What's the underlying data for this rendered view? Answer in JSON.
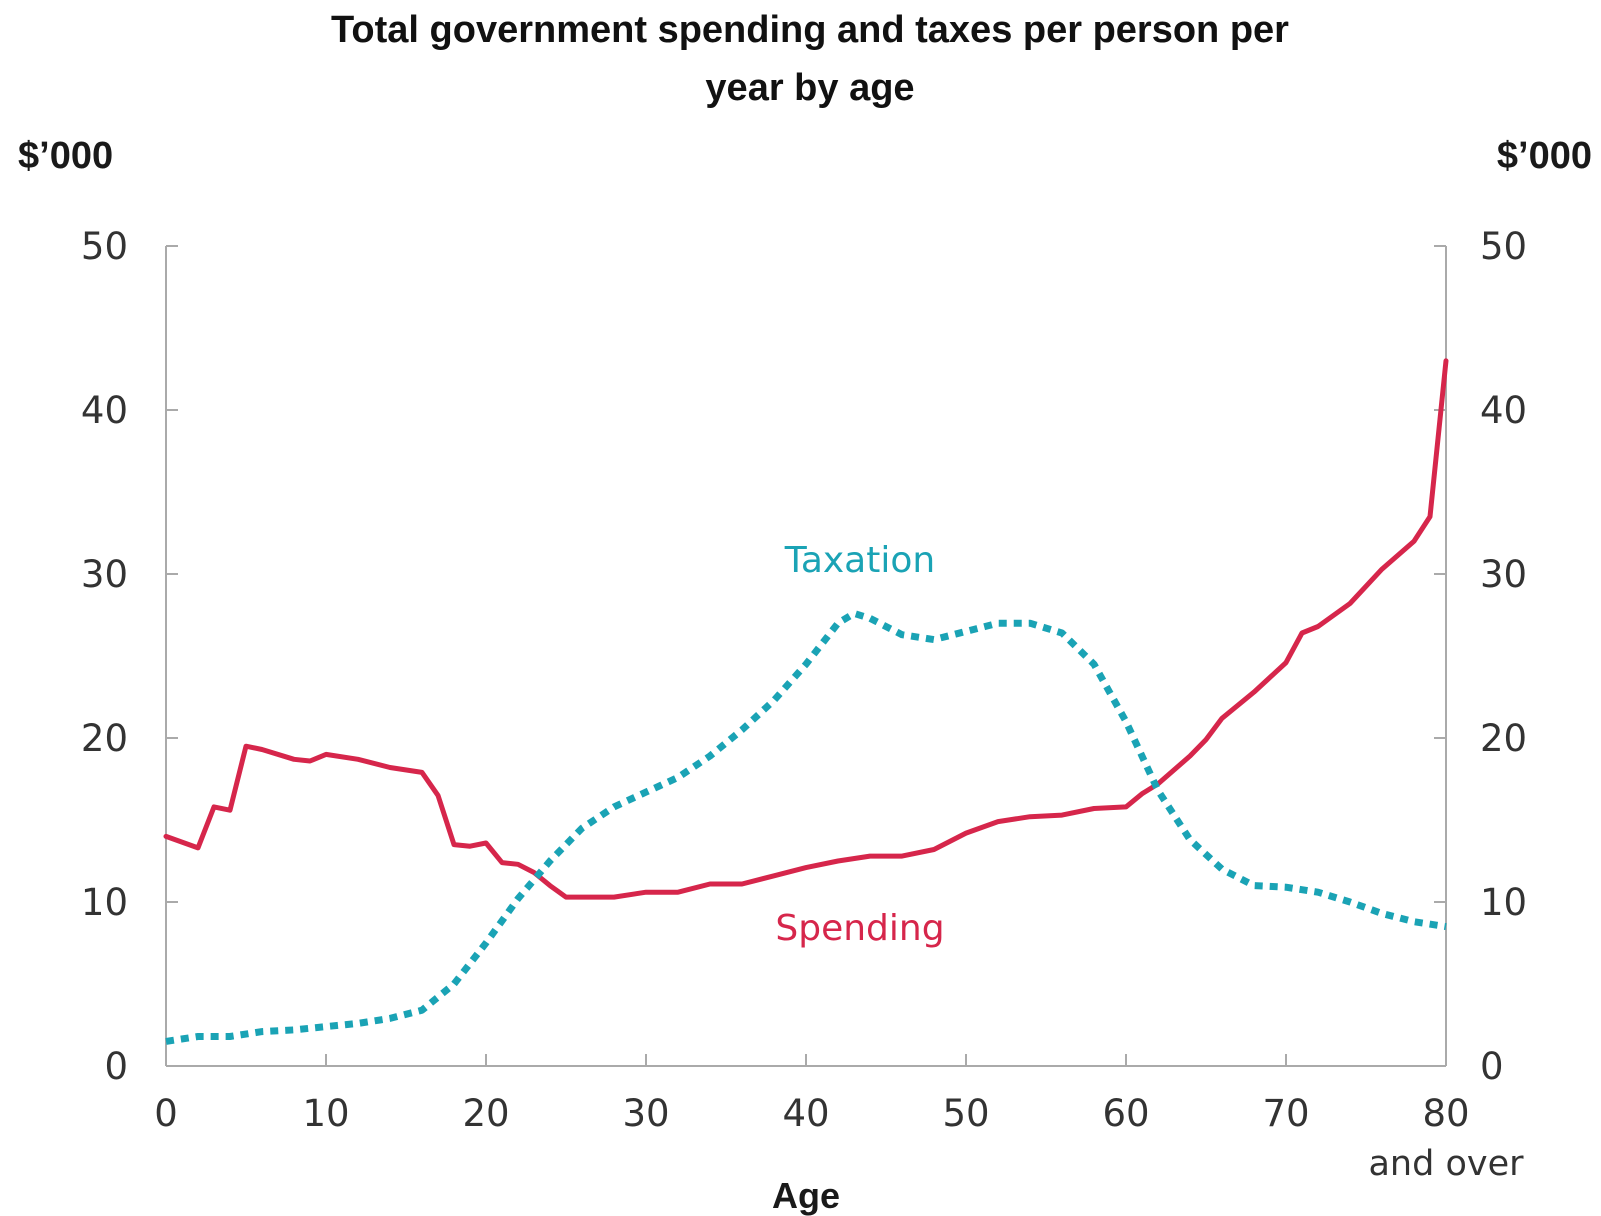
{
  "chart_data": {
    "type": "line",
    "title_line1": "Total government spending and taxes per person per",
    "title_line2": "year by age",
    "y_unit_left": "$’000",
    "y_unit_right": "$’000",
    "xlabel": "Age",
    "x_ticks": [
      "0",
      "10",
      "20",
      "30",
      "40",
      "50",
      "60",
      "70",
      "80"
    ],
    "x_last_sublabel": "and over",
    "y_ticks": [
      "0",
      "10",
      "20",
      "30",
      "40",
      "50"
    ],
    "xlim": [
      0,
      80
    ],
    "ylim": [
      0,
      50
    ],
    "grid": false,
    "series": [
      {
        "name": "Spending",
        "color": "#d6264b",
        "style": "solid",
        "x": [
          0,
          2,
          3,
          4,
          5,
          6,
          8,
          9,
          10,
          12,
          14,
          16,
          17,
          18,
          19,
          20,
          21,
          22,
          23,
          24,
          25,
          26,
          28,
          30,
          32,
          34,
          36,
          38,
          40,
          42,
          44,
          46,
          48,
          50,
          52,
          54,
          56,
          58,
          60,
          61,
          62,
          64,
          65,
          66,
          68,
          70,
          71,
          72,
          74,
          76,
          78,
          79,
          80
        ],
        "values": [
          14.0,
          13.3,
          15.8,
          15.6,
          19.5,
          19.3,
          18.7,
          18.6,
          19.0,
          18.7,
          18.2,
          17.9,
          16.5,
          13.5,
          13.4,
          13.6,
          12.4,
          12.3,
          11.8,
          11.0,
          10.3,
          10.3,
          10.3,
          10.6,
          10.6,
          11.1,
          11.1,
          11.6,
          12.1,
          12.5,
          12.8,
          12.8,
          13.2,
          14.2,
          14.9,
          15.2,
          15.3,
          15.7,
          15.8,
          16.6,
          17.2,
          18.9,
          19.9,
          21.2,
          22.8,
          24.6,
          26.4,
          26.8,
          28.2,
          30.3,
          32.0,
          33.5,
          43.0
        ]
      },
      {
        "name": "Taxation",
        "color": "#1aa3b5",
        "style": "dotted",
        "x": [
          0,
          2,
          4,
          6,
          8,
          10,
          12,
          14,
          16,
          18,
          20,
          22,
          24,
          26,
          28,
          30,
          32,
          34,
          36,
          38,
          40,
          42,
          43,
          44,
          46,
          48,
          50,
          52,
          54,
          56,
          58,
          60,
          62,
          64,
          66,
          68,
          70,
          72,
          74,
          76,
          78,
          80
        ],
        "values": [
          1.5,
          1.8,
          1.8,
          2.1,
          2.2,
          2.4,
          2.6,
          2.9,
          3.4,
          5.0,
          7.5,
          10.2,
          12.5,
          14.5,
          15.8,
          16.7,
          17.6,
          18.9,
          20.5,
          22.3,
          24.5,
          27.0,
          27.6,
          27.3,
          26.3,
          26.0,
          26.5,
          27.0,
          27.0,
          26.4,
          24.5,
          21.0,
          16.8,
          13.8,
          12.0,
          11.0,
          10.9,
          10.6,
          10.0,
          9.3,
          8.8,
          8.5
        ]
      }
    ],
    "annotations": [
      {
        "text": "Taxation",
        "series": "Taxation"
      },
      {
        "text": "Spending",
        "series": "Spending"
      }
    ]
  }
}
